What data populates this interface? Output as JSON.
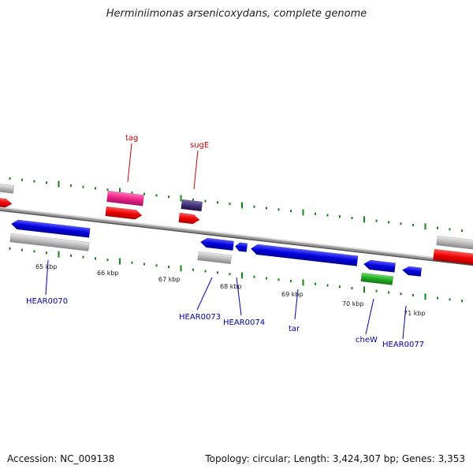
{
  "title": "Herminiimonas arsenicoxydans, complete genome",
  "footer": {
    "accession": "Accession: NC_009138",
    "summary": "Topology: circular; Length: 3,424,307 bp; Genes: 3,353"
  },
  "ruler": {
    "ticks": [
      {
        "label": "65 kbp"
      },
      {
        "label": "66 kbp"
      },
      {
        "label": "67 kbp"
      },
      {
        "label": "68 kbp"
      },
      {
        "label": "69 kbp"
      },
      {
        "label": "70 kbp"
      },
      {
        "label": "71 kbp"
      }
    ]
  },
  "gene_labels": [
    {
      "name": "tag",
      "color": "#cc0000"
    },
    {
      "name": "sugE",
      "color": "#cc0000"
    },
    {
      "name": "HEAR0070",
      "color": "#0000aa"
    },
    {
      "name": "HEAR0073",
      "color": "#0000aa"
    },
    {
      "name": "HEAR0074",
      "color": "#0000aa"
    },
    {
      "name": "tar",
      "color": "#0000aa"
    },
    {
      "name": "cheW",
      "color": "#0000aa"
    },
    {
      "name": "HEAR0077",
      "color": "#0000aa"
    }
  ],
  "colors": {
    "forward_cds": "#ee0000",
    "reverse_cds": "#0000dd",
    "gene": "#aaaaaa",
    "trna": "#ee2288",
    "misc": "#443377",
    "green_cds": "#22aa22",
    "tick": "#118811"
  }
}
